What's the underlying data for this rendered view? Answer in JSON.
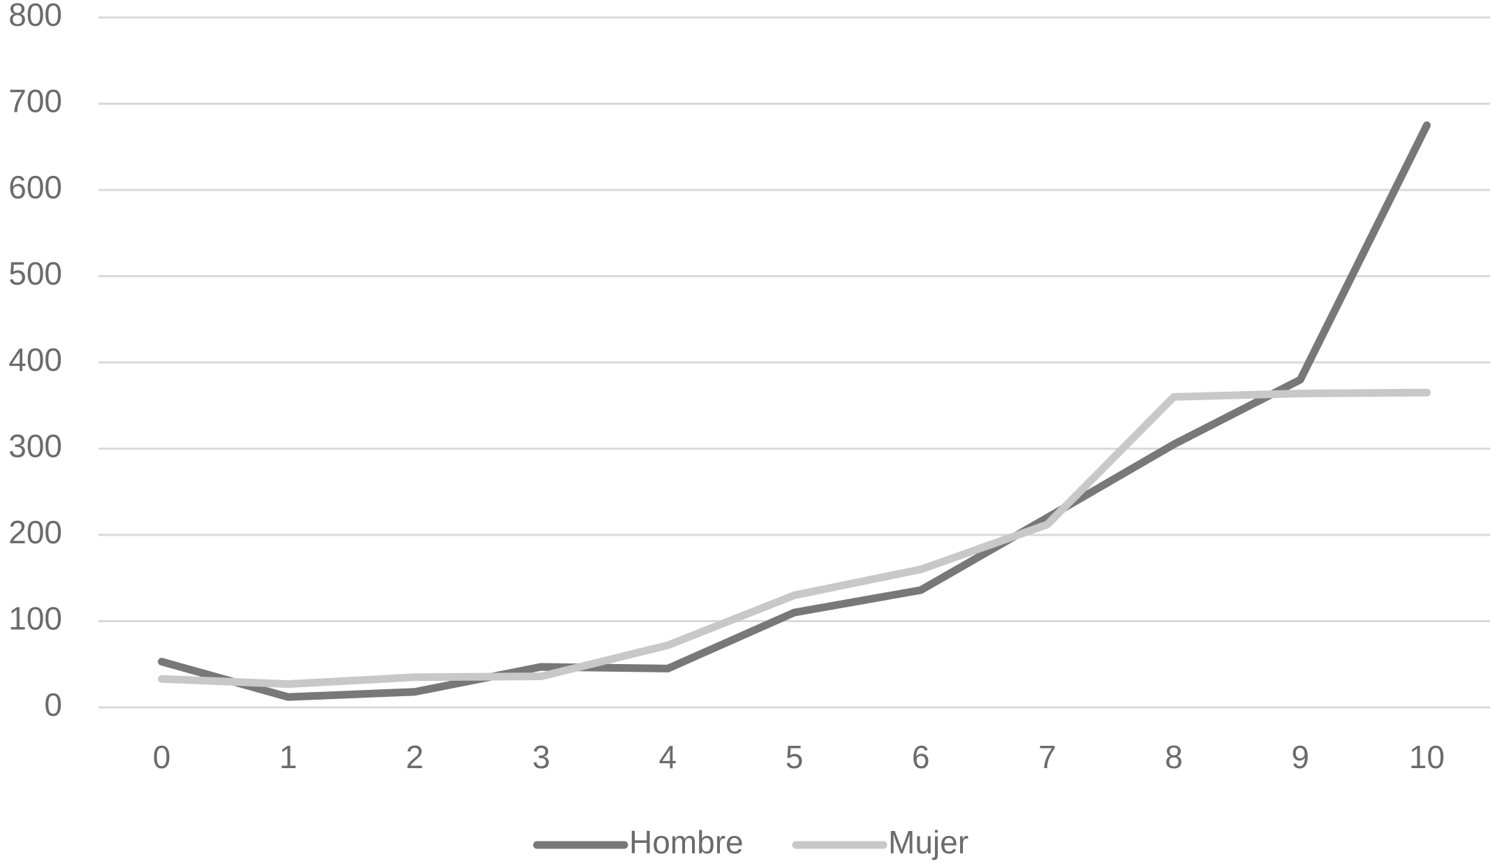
{
  "chart_data": {
    "type": "line",
    "categories": [
      "0",
      "1",
      "2",
      "3",
      "4",
      "5",
      "6",
      "7",
      "8",
      "9",
      "10"
    ],
    "series": [
      {
        "name": "Hombre",
        "color": "#787878",
        "values": [
          53,
          12,
          18,
          47,
          45,
          110,
          136,
          220,
          305,
          380,
          675
        ]
      },
      {
        "name": "Mujer",
        "color": "#c8c8c8",
        "values": [
          33,
          27,
          35,
          36,
          72,
          130,
          160,
          212,
          360,
          364,
          365
        ]
      }
    ],
    "ylim": [
      0,
      800
    ],
    "yticks": [
      0,
      100,
      200,
      300,
      400,
      500,
      600,
      700,
      800
    ],
    "grid": true,
    "legend": "bottom"
  }
}
